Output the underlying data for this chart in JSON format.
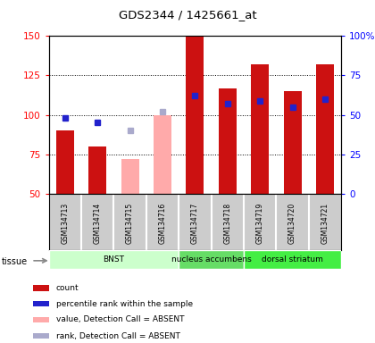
{
  "title": "GDS2344 / 1425661_at",
  "samples": [
    "GSM134713",
    "GSM134714",
    "GSM134715",
    "GSM134716",
    "GSM134717",
    "GSM134718",
    "GSM134719",
    "GSM134720",
    "GSM134721"
  ],
  "count_values": [
    90,
    80,
    null,
    null,
    150,
    117,
    132,
    115,
    132
  ],
  "count_absent": [
    null,
    null,
    72,
    100,
    null,
    null,
    null,
    null,
    null
  ],
  "rank_values": [
    98,
    95,
    null,
    null,
    112,
    107,
    109,
    105,
    110
  ],
  "rank_absent": [
    null,
    null,
    90,
    102,
    null,
    null,
    null,
    null,
    null
  ],
  "ylim": [
    50,
    150
  ],
  "y2lim": [
    0,
    100
  ],
  "yticks": [
    50,
    75,
    100,
    125,
    150
  ],
  "y2ticks": [
    0,
    25,
    50,
    75,
    100
  ],
  "y2tick_labels": [
    "0",
    "25",
    "50",
    "75",
    "100%"
  ],
  "bar_width": 0.55,
  "count_color": "#cc1111",
  "count_absent_color": "#ffaaaa",
  "rank_color": "#2222cc",
  "rank_absent_color": "#aaaacc",
  "label_area_color": "#cccccc",
  "tissue_groups": [
    {
      "label": "BNST",
      "start": 0,
      "end": 4,
      "color": "#ccffcc"
    },
    {
      "label": "nucleus accumbens",
      "start": 4,
      "end": 6,
      "color": "#66dd66"
    },
    {
      "label": "dorsal striatum",
      "start": 6,
      "end": 9,
      "color": "#44ee44"
    }
  ],
  "legend_items": [
    {
      "color": "#cc1111",
      "label": "count"
    },
    {
      "color": "#2222cc",
      "label": "percentile rank within the sample"
    },
    {
      "color": "#ffaaaa",
      "label": "value, Detection Call = ABSENT"
    },
    {
      "color": "#aaaacc",
      "label": "rank, Detection Call = ABSENT"
    }
  ]
}
